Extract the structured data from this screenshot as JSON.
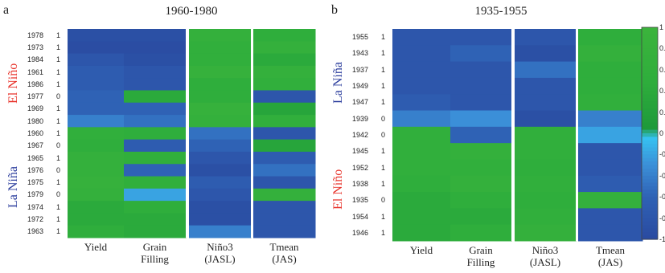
{
  "colors": {
    "el_nino_label": "#e8342c",
    "la_nina_label": "#2d3f9e",
    "colormap": [
      "#2a4aa0",
      "#2f62b5",
      "#3b8fd8",
      "#36c1f0",
      "#1e9a3a",
      "#2fae3c",
      "#3bb33c"
    ]
  },
  "panels": [
    {
      "id": "a",
      "letter": "a",
      "title": "1960-1980",
      "columns": [
        "Yield",
        "Grain\nFilling",
        "Niño3\n(JASL)",
        "Tmean\n(JAS)"
      ],
      "years": [
        "1978",
        "1973",
        "1984",
        "1961",
        "1986",
        "1977",
        "1969",
        "1980",
        "1960",
        "1967",
        "1965",
        "1976",
        "1975",
        "1979",
        "1974",
        "1972",
        "1963"
      ],
      "flags": [
        "1",
        "1",
        "1",
        "1",
        "1",
        "0",
        "1",
        "1",
        "1",
        "0",
        "1",
        "0",
        "1",
        "0",
        "1",
        "1",
        "1"
      ],
      "group_labels": [
        {
          "text": "El Niño",
          "color_key": "el_nino_label"
        },
        {
          "text": "La Niña",
          "color_key": "la_nina_label"
        }
      ]
    },
    {
      "id": "b",
      "letter": "b",
      "title": "1935-1955",
      "columns": [
        "Yield",
        "Grain\nFilling",
        "Niño3\n(JASL)",
        "Tmean\n(JAS)"
      ],
      "years": [
        "1955",
        "1943",
        "1937",
        "1949",
        "1947",
        "1939",
        "1942",
        "1945",
        "1952",
        "1938",
        "1935",
        "1954",
        "1946"
      ],
      "flags": [
        "1",
        "1",
        "1",
        "1",
        "1",
        "0",
        "0",
        "1",
        "1",
        "1",
        "0",
        "1",
        "1"
      ],
      "group_labels": [
        {
          "text": "La Niña",
          "color_key": "la_nina_label"
        },
        {
          "text": "El Niño",
          "color_key": "el_nino_label"
        }
      ]
    }
  ],
  "colorbar": {
    "ticks": [
      "1",
      "0.",
      "0.",
      "0.",
      "0.",
      "0",
      "-0",
      "-0",
      "-0",
      "-0",
      "-1"
    ]
  },
  "chart_data": [
    {
      "type": "heatmap",
      "title": "1960-1980",
      "x": [
        "Yield",
        "Grain Filling",
        "Niño3 (JASL)",
        "Tmean (JAS)"
      ],
      "y": [
        "1978",
        "1973",
        "1984",
        "1961",
        "1986",
        "1977",
        "1969",
        "1980",
        "1960",
        "1967",
        "1965",
        "1976",
        "1975",
        "1979",
        "1974",
        "1972",
        "1963"
      ],
      "values": [
        [
          -0.9,
          -0.9,
          0.7,
          0.5
        ],
        [
          -0.95,
          -0.95,
          0.6,
          0.7
        ],
        [
          -0.8,
          -0.9,
          0.6,
          0.4
        ],
        [
          -0.7,
          -0.8,
          0.8,
          0.7
        ],
        [
          -0.7,
          -0.8,
          0.5,
          0.6
        ],
        [
          -0.6,
          0.4,
          0.5,
          -0.8
        ],
        [
          -0.6,
          -0.6,
          0.8,
          0.3
        ],
        [
          -0.4,
          -0.5,
          0.7,
          0.6
        ],
        [
          0.6,
          0.5,
          -0.5,
          -0.8
        ],
        [
          0.5,
          -0.7,
          -0.6,
          0.3
        ],
        [
          0.7,
          0.6,
          -0.8,
          -0.7
        ],
        [
          0.7,
          -0.6,
          -0.9,
          -0.5
        ],
        [
          0.8,
          0.6,
          -0.7,
          -0.8
        ],
        [
          0.7,
          -0.2,
          -0.8,
          0.7
        ],
        [
          0.4,
          0.5,
          -0.9,
          -0.8
        ],
        [
          0.4,
          0.4,
          -0.9,
          -0.8
        ],
        [
          0.5,
          0.4,
          -0.4,
          -0.8
        ]
      ],
      "colorbar_range": [
        -1,
        1
      ]
    },
    {
      "type": "heatmap",
      "title": "1935-1955",
      "x": [
        "Yield",
        "Grain Filling",
        "Niño3 (JASL)",
        "Tmean (JAS)"
      ],
      "y": [
        "1955",
        "1943",
        "1937",
        "1949",
        "1947",
        "1939",
        "1942",
        "1945",
        "1952",
        "1938",
        "1935",
        "1954",
        "1946"
      ],
      "values": [
        [
          -0.8,
          -0.8,
          -0.8,
          0.5
        ],
        [
          -0.8,
          -0.6,
          -0.9,
          0.7
        ],
        [
          -0.8,
          -0.8,
          -0.5,
          0.5
        ],
        [
          -0.8,
          -0.8,
          -0.8,
          0.5
        ],
        [
          -0.7,
          -0.8,
          -0.8,
          0.6
        ],
        [
          -0.4,
          -0.3,
          -0.9,
          -0.4
        ],
        [
          0.6,
          -0.6,
          0.6,
          -0.2
        ],
        [
          0.6,
          0.7,
          0.6,
          -0.8
        ],
        [
          0.6,
          0.6,
          0.5,
          -0.8
        ],
        [
          0.5,
          0.7,
          0.6,
          -0.7
        ],
        [
          0.4,
          0.5,
          0.5,
          0.7
        ],
        [
          0.4,
          0.4,
          0.6,
          -0.8
        ],
        [
          0.4,
          0.5,
          0.7,
          -0.8
        ]
      ],
      "colorbar_range": [
        -1,
        1
      ]
    }
  ]
}
